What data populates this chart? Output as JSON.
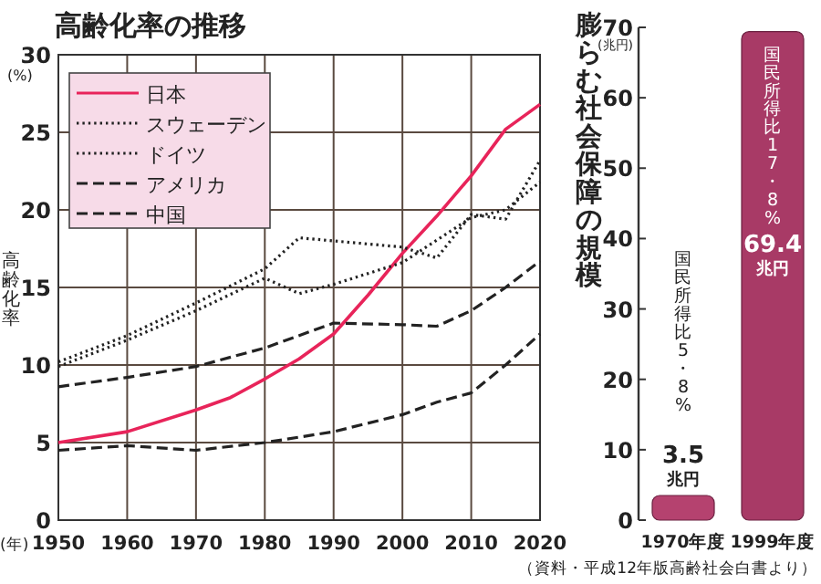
{
  "chart_data": [
    {
      "type": "line",
      "title": "高齢化率の推移",
      "ylabel": "高齢化率",
      "xlabel": "(年)",
      "annotations": [
        "(%)",
        "（資料・平成12年版高齢社会白書より）"
      ],
      "xlim": [
        1950,
        2020
      ],
      "xticks": [
        1950,
        1960,
        1970,
        1980,
        1990,
        2000,
        2010,
        2020
      ],
      "ylim": [
        0,
        30
      ],
      "yticks": [
        0,
        5,
        10,
        15,
        20,
        25,
        30
      ],
      "grid": true,
      "legend": "top left",
      "marker": "none",
      "series": [
        {
          "name": "日本",
          "color": "#e8245a",
          "line_style": "solid",
          "x": [
            1950,
            1960,
            1970,
            1975,
            1980,
            1985,
            1990,
            1995,
            2000,
            2005,
            2010,
            2015,
            2020
          ],
          "values": [
            5.0,
            5.7,
            7.1,
            7.9,
            9.1,
            10.4,
            12.0,
            14.5,
            17.2,
            19.6,
            22.2,
            25.2,
            26.8
          ]
        },
        {
          "name": "スウェーデン",
          "color": "#222222",
          "line_style": "dotted",
          "x": [
            1950,
            1960,
            1970,
            1980,
            1985,
            1990,
            2000,
            2005,
            2010,
            2015,
            2020
          ],
          "values": [
            10.2,
            11.9,
            14.0,
            16.2,
            18.2,
            18.0,
            17.6,
            16.9,
            19.7,
            19.4,
            23.2
          ]
        },
        {
          "name": "ドイツ",
          "color": "#222222",
          "line_style": "dotted",
          "x": [
            1950,
            1960,
            1970,
            1980,
            1985,
            1990,
            2000,
            2010,
            2015,
            2020
          ],
          "values": [
            9.9,
            11.6,
            13.5,
            15.6,
            14.6,
            15.2,
            16.6,
            19.5,
            20.0,
            21.8
          ]
        },
        {
          "name": "アメリカ",
          "color": "#222222",
          "line_style": "dashed",
          "x": [
            1950,
            1960,
            1970,
            1980,
            1990,
            2000,
            2005,
            2010,
            2015,
            2020
          ],
          "values": [
            8.6,
            9.2,
            9.9,
            11.1,
            12.7,
            12.6,
            12.5,
            13.5,
            15.0,
            16.7
          ]
        },
        {
          "name": "中国",
          "color": "#222222",
          "line_style": "dashed",
          "x": [
            1950,
            1960,
            1970,
            1980,
            1990,
            2000,
            2005,
            2010,
            2015,
            2020
          ],
          "values": [
            4.5,
            4.8,
            4.5,
            5.0,
            5.7,
            6.8,
            7.6,
            8.2,
            10.0,
            12.0
          ]
        }
      ]
    },
    {
      "type": "bar",
      "title": "膨らむ社会保障の規模",
      "ylabel": "(兆円)",
      "categories": [
        "1970年度",
        "1999年度"
      ],
      "values": [
        3.5,
        69.4
      ],
      "value_labels": [
        "3.5$_{兆円}$",
        "69.4$_{兆円}$"
      ],
      "colors": [
        "#b5426f",
        "#a83a66"
      ],
      "ylim": [
        0,
        70
      ],
      "yticks": [
        0,
        10,
        20,
        30,
        40,
        50,
        60,
        70
      ],
      "grid": false,
      "annotations": [
        "国民所得比5・8%",
        "国民所得比17・8%"
      ]
    }
  ]
}
